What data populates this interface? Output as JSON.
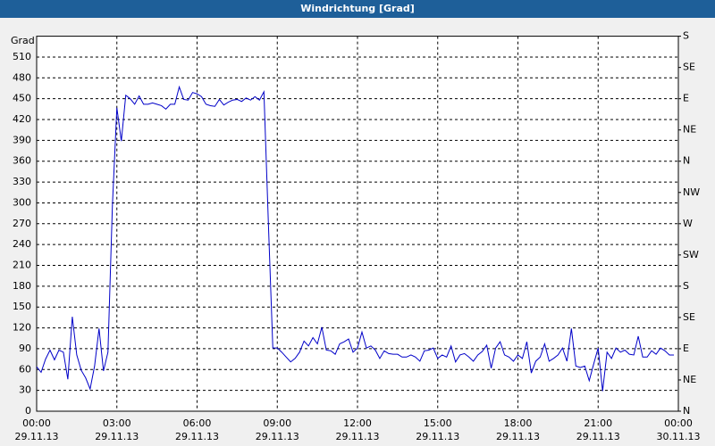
{
  "chart_data": {
    "type": "line",
    "title": "Windrichtung [Grad]",
    "ylabel": "Grad",
    "x": [
      0,
      10,
      20,
      30,
      40,
      50,
      60,
      70,
      80,
      90,
      100,
      110,
      120,
      130,
      140,
      150,
      160,
      170,
      180,
      190,
      200,
      210,
      220,
      230,
      240,
      250,
      260,
      270,
      280,
      290,
      300,
      310,
      320,
      330,
      340,
      350,
      360,
      370,
      380,
      390,
      400,
      410,
      420,
      430,
      440,
      450,
      460,
      470,
      480,
      490,
      500,
      510,
      520,
      530,
      540,
      550,
      560,
      570,
      580,
      590,
      600,
      610,
      620,
      630,
      640,
      650,
      660,
      670,
      680,
      690,
      700,
      710,
      720,
      730,
      740,
      750,
      760,
      770,
      780,
      790,
      800,
      810,
      820,
      830,
      840,
      850,
      860,
      870,
      880,
      890,
      900,
      910,
      920,
      930,
      940,
      950,
      960,
      970,
      980,
      990,
      1000,
      1010,
      1020,
      1030,
      1040,
      1050,
      1060,
      1070,
      1080,
      1090,
      1100,
      1110,
      1120,
      1130,
      1140,
      1150,
      1160,
      1170,
      1180,
      1190,
      1200,
      1210,
      1220,
      1230,
      1240,
      1250,
      1260,
      1270,
      1280,
      1290,
      1300,
      1310,
      1320,
      1330,
      1340,
      1350,
      1360,
      1370,
      1380,
      1390,
      1400,
      1410,
      1420,
      1430
    ],
    "series": [
      {
        "color": "#0000c8",
        "values": [
          64,
          56,
          75,
          88,
          74,
          88,
          85,
          46,
          136,
          81,
          59,
          48,
          32,
          65,
          119,
          58,
          85,
          296,
          437,
          389,
          455,
          450,
          442,
          454,
          442,
          442,
          444,
          442,
          440,
          435,
          442,
          442,
          467,
          449,
          448,
          459,
          457,
          453,
          442,
          440,
          439,
          449,
          441,
          445,
          448,
          449,
          446,
          451,
          448,
          453,
          448,
          460,
          271,
          91,
          91,
          85,
          78,
          71,
          76,
          85,
          101,
          94,
          106,
          97,
          121,
          88,
          87,
          82,
          97,
          100,
          104,
          85,
          91,
          114,
          91,
          94,
          88,
          76,
          87,
          83,
          82,
          82,
          78,
          78,
          81,
          78,
          72,
          87,
          88,
          91,
          76,
          81,
          78,
          94,
          71,
          81,
          83,
          78,
          72,
          81,
          86,
          95,
          62,
          91,
          100,
          81,
          78,
          72,
          81,
          76,
          100,
          55,
          72,
          78,
          97,
          72,
          76,
          81,
          91,
          72,
          119,
          65,
          63,
          65,
          44,
          68,
          91,
          29,
          85,
          76,
          91,
          85,
          88,
          82,
          81,
          108,
          78,
          78,
          87,
          82,
          91,
          87,
          81,
          81
        ]
      }
    ],
    "xlim": [
      0,
      1440
    ],
    "xticks": [
      {
        "value": 0,
        "label": "00:00"
      },
      {
        "value": 180,
        "label": "03:00"
      },
      {
        "value": 360,
        "label": "06:00"
      },
      {
        "value": 540,
        "label": "09:00"
      },
      {
        "value": 720,
        "label": "12:00"
      },
      {
        "value": 900,
        "label": "15:00"
      },
      {
        "value": 1080,
        "label": "18:00"
      },
      {
        "value": 1260,
        "label": "21:00"
      },
      {
        "value": 1440,
        "label": "00:00"
      }
    ],
    "xtick_dates": [
      "29.11.13",
      "29.11.13",
      "29.11.13",
      "29.11.13",
      "29.11.13",
      "29.11.13",
      "29.11.13",
      "29.11.13",
      "30.11.13"
    ],
    "ylim": [
      0,
      540
    ],
    "yticks": [
      0,
      30,
      60,
      90,
      120,
      150,
      180,
      210,
      240,
      270,
      300,
      330,
      360,
      390,
      420,
      450,
      480,
      510
    ],
    "y2lim": [
      0,
      540
    ],
    "y2ticks": [
      {
        "value": 0,
        "label": "N"
      },
      {
        "value": 45,
        "label": "NE"
      },
      {
        "value": 90,
        "label": "E"
      },
      {
        "value": 135,
        "label": "SE"
      },
      {
        "value": 180,
        "label": "S"
      },
      {
        "value": 225,
        "label": "SW"
      },
      {
        "value": 270,
        "label": "W"
      },
      {
        "value": 315,
        "label": "NW"
      },
      {
        "value": 360,
        "label": "N"
      },
      {
        "value": 405,
        "label": "NE"
      },
      {
        "value": 450,
        "label": "E"
      },
      {
        "value": 495,
        "label": "SE"
      },
      {
        "value": 540,
        "label": "S"
      }
    ],
    "grid": true
  }
}
